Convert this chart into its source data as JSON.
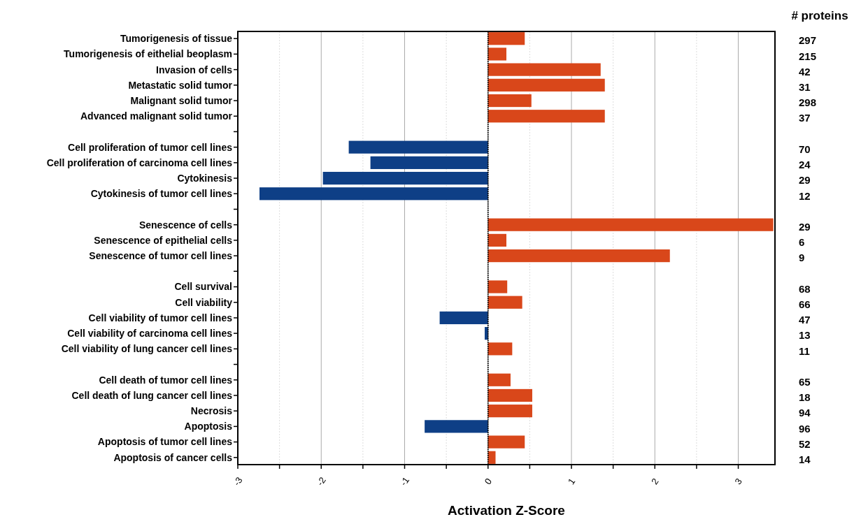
{
  "chart_data": {
    "type": "bar",
    "orientation": "horizontal",
    "xlabel": "Activation Z-Score",
    "categories": [
      "Tumorigenesis of tissue",
      "Tumorigenesis of eithelial beoplasm",
      "Invasion of cells",
      "Metastatic solid tumor",
      "Malignant solid tumor",
      "Advanced malignant solid tumor",
      null,
      "Cell proliferation of tumor cell lines",
      "Cell proliferation of carcinoma cell lines",
      "Cytokinesis",
      "Cytokinesis of tumor cell lines",
      null,
      "Senescence of cells",
      "Senescence of epithelial cells",
      "Senescence of tumor cell lines",
      null,
      "Cell survival",
      "Cell viability",
      "Cell viability of tumor cell lines",
      "Cell viability of carcinoma cell lines",
      "Cell viability of lung cancer cell lines",
      null,
      "Cell death of tumor cell lines",
      "Cell death of lung cancer cell lines",
      "Necrosis",
      "Apoptosis",
      "Apoptosis of tumor cell lines",
      "Apoptosis of cancer cells"
    ],
    "values": [
      0.44,
      0.22,
      1.35,
      1.4,
      0.52,
      1.4,
      null,
      -1.67,
      -1.41,
      -1.98,
      -2.74,
      null,
      3.42,
      0.22,
      2.18,
      null,
      0.23,
      0.41,
      -0.58,
      -0.04,
      0.29,
      null,
      0.27,
      0.53,
      0.53,
      -0.76,
      0.44,
      0.09
    ],
    "colors": [
      "#d9471a",
      "#d9471a",
      "#d9471a",
      "#d9471a",
      "#d9471a",
      "#d9471a",
      null,
      "#0e3f86",
      "#0e3f86",
      "#0e3f86",
      "#0e3f86",
      null,
      "#d9471a",
      "#d9471a",
      "#d9471a",
      null,
      "#d9471a",
      "#d9471a",
      "#0e3f86",
      "#0e3f86",
      "#d9471a",
      null,
      "#d9471a",
      "#d9471a",
      "#d9471a",
      "#0e3f86",
      "#d9471a",
      "#d9471a"
    ],
    "xlim": [
      -3,
      3.44
    ],
    "xticks": [
      {
        "value": -3,
        "label": "-3"
      },
      {
        "value": -2.5,
        "label": null
      },
      {
        "value": -2,
        "label": "-2"
      },
      {
        "value": -1.5,
        "label": null
      },
      {
        "value": -1,
        "label": "-1"
      },
      {
        "value": -0.5,
        "label": null
      },
      0,
      {
        "value": 0.5,
        "label": null
      },
      1,
      {
        "value": 1.5,
        "label": null
      },
      2,
      {
        "value": 2.5,
        "label": null
      },
      3
    ],
    "grid": "x",
    "ref_lines": [
      {
        "axis": "x",
        "value": 0,
        "color": "#000000",
        "line_style": "dotted"
      }
    ],
    "annotations": [
      "# proteins",
      "297",
      "215",
      "42",
      "31",
      "298",
      "37",
      "70",
      "24",
      "29",
      "12",
      "29",
      "6",
      "9",
      "68",
      "66",
      "47",
      "13",
      "11",
      "65",
      "18",
      "94",
      "96",
      "52",
      "14"
    ]
  }
}
